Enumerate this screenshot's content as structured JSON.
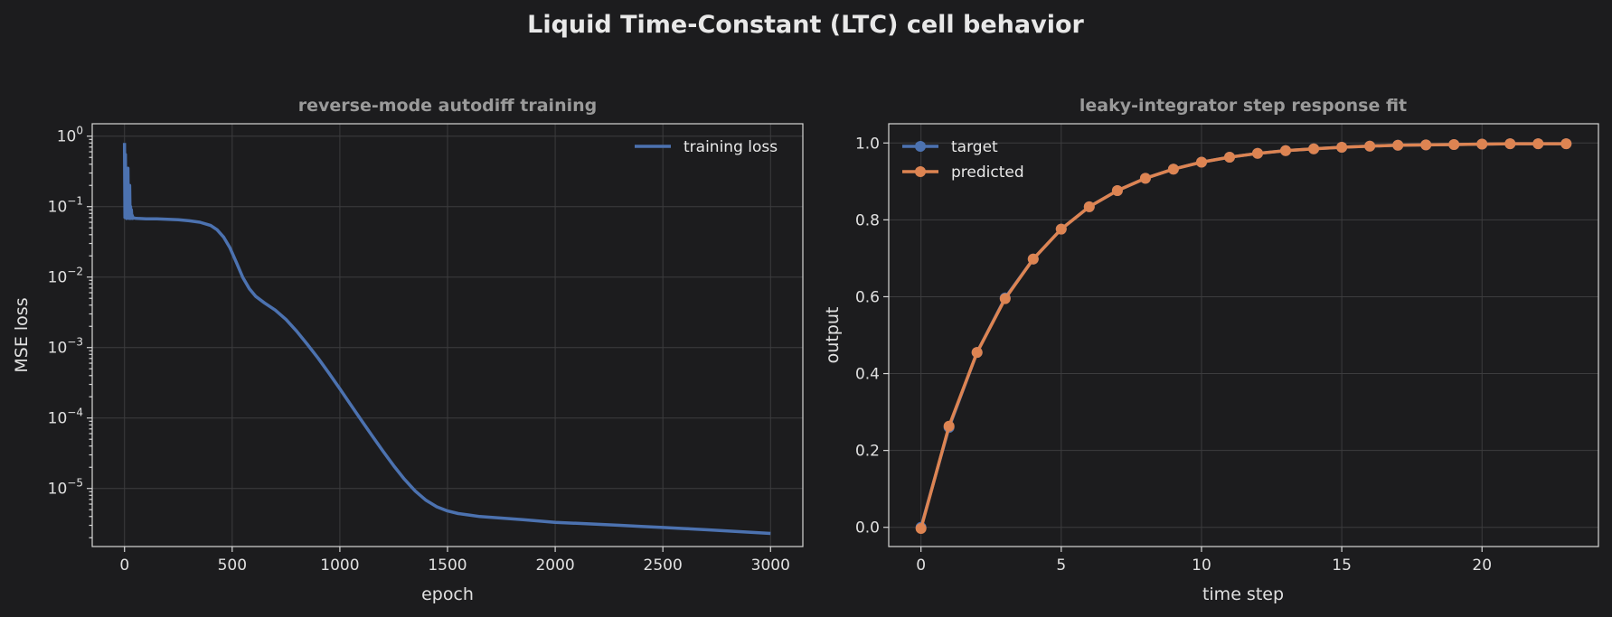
{
  "figure": {
    "title": "Liquid Time-Constant (LTC) cell behavior",
    "background": "#1c1c1e"
  },
  "chart_data": [
    {
      "type": "line",
      "title": "reverse-mode autodiff training",
      "xlabel": "epoch",
      "ylabel": "MSE loss",
      "xlim": [
        -150,
        3150
      ],
      "ylim": [
        1.5e-06,
        1.5
      ],
      "yscale": "log",
      "xticks": [
        0,
        500,
        1000,
        1500,
        2000,
        2500,
        3000
      ],
      "xticklabels": [
        "0",
        "500",
        "1000",
        "1500",
        "2000",
        "2500",
        "3000"
      ],
      "yticks": [
        1e-05,
        0.0001,
        0.001,
        0.01,
        0.1,
        1
      ],
      "yticklabels": [
        {
          "base": "10",
          "exp": "−5"
        },
        {
          "base": "10",
          "exp": "−4"
        },
        {
          "base": "10",
          "exp": "−3"
        },
        {
          "base": "10",
          "exp": "−2"
        },
        {
          "base": "10",
          "exp": "−1"
        },
        {
          "base": "10",
          "exp": "0"
        }
      ],
      "grid": true,
      "legend_position": "upper right",
      "series": [
        {
          "name": "training loss",
          "color": "#4c72b0",
          "x": [
            0,
            2,
            4,
            6,
            8,
            10,
            12,
            14,
            16,
            18,
            20,
            22,
            24,
            26,
            28,
            30,
            32,
            34,
            36,
            38,
            40,
            45,
            50,
            60,
            80,
            100,
            150,
            200,
            250,
            300,
            350,
            400,
            430,
            460,
            490,
            520,
            550,
            580,
            610,
            650,
            700,
            750,
            800,
            850,
            900,
            950,
            1000,
            1050,
            1100,
            1150,
            1200,
            1250,
            1300,
            1350,
            1400,
            1450,
            1500,
            1550,
            1600,
            1650,
            1700,
            1750,
            1800,
            1850,
            1900,
            1950,
            2000,
            2100,
            2200,
            2300,
            2400,
            2500,
            2600,
            2700,
            2800,
            2900,
            3000
          ],
          "y": [
            0.8,
            0.07,
            0.55,
            0.08,
            0.3,
            0.068,
            0.18,
            0.07,
            0.35,
            0.069,
            0.12,
            0.068,
            0.2,
            0.069,
            0.1,
            0.068,
            0.09,
            0.069,
            0.075,
            0.068,
            0.07,
            0.069,
            0.0685,
            0.068,
            0.0675,
            0.067,
            0.067,
            0.066,
            0.065,
            0.063,
            0.06,
            0.054,
            0.047,
            0.037,
            0.026,
            0.016,
            0.0098,
            0.0068,
            0.0053,
            0.0043,
            0.0034,
            0.0025,
            0.0017,
            0.0011,
            0.0007,
            0.00043,
            0.00026,
            0.000155,
            9.3e-05,
            5.6e-05,
            3.4e-05,
            2.1e-05,
            1.35e-05,
            9.2e-06,
            6.8e-06,
            5.5e-06,
            4.8e-06,
            4.4e-06,
            4.2e-06,
            4e-06,
            3.9e-06,
            3.8e-06,
            3.7e-06,
            3.6e-06,
            3.5e-06,
            3.4e-06,
            3.3e-06,
            3.2e-06,
            3.1e-06,
            3e-06,
            2.9e-06,
            2.8e-06,
            2.7e-06,
            2.6e-06,
            2.5e-06,
            2.4e-06,
            2.3e-06
          ]
        }
      ]
    },
    {
      "type": "line",
      "title": "leaky-integrator step response fit",
      "xlabel": "time step",
      "ylabel": "output",
      "xlim": [
        -1.15,
        24.15
      ],
      "ylim": [
        -0.05,
        1.05
      ],
      "xticks": [
        0,
        5,
        10,
        15,
        20
      ],
      "xticklabels": [
        "0",
        "5",
        "10",
        "15",
        "20"
      ],
      "yticks": [
        0.0,
        0.2,
        0.4,
        0.6,
        0.8,
        1.0
      ],
      "yticklabels": [
        "0.0",
        "0.2",
        "0.4",
        "0.6",
        "0.8",
        "1.0"
      ],
      "grid": true,
      "legend_position": "upper left",
      "x": [
        0,
        1,
        2,
        3,
        4,
        5,
        6,
        7,
        8,
        9,
        10,
        11,
        12,
        13,
        14,
        15,
        16,
        17,
        18,
        19,
        20,
        21,
        22,
        23
      ],
      "series": [
        {
          "name": "target",
          "color": "#4c72b0",
          "values": [
            0.0,
            0.26,
            0.455,
            0.597,
            0.698,
            0.776,
            0.834,
            0.876,
            0.908,
            0.932,
            0.95,
            0.963,
            0.973,
            0.98,
            0.985,
            0.989,
            0.992,
            0.994,
            0.995,
            0.996,
            0.997,
            0.998,
            0.998,
            0.998
          ]
        },
        {
          "name": "predicted",
          "color": "#dd8452",
          "values": [
            -0.003,
            0.263,
            0.455,
            0.595,
            0.698,
            0.776,
            0.834,
            0.876,
            0.908,
            0.932,
            0.95,
            0.963,
            0.973,
            0.98,
            0.985,
            0.989,
            0.992,
            0.994,
            0.995,
            0.996,
            0.997,
            0.998,
            0.998,
            0.998
          ]
        }
      ]
    }
  ]
}
